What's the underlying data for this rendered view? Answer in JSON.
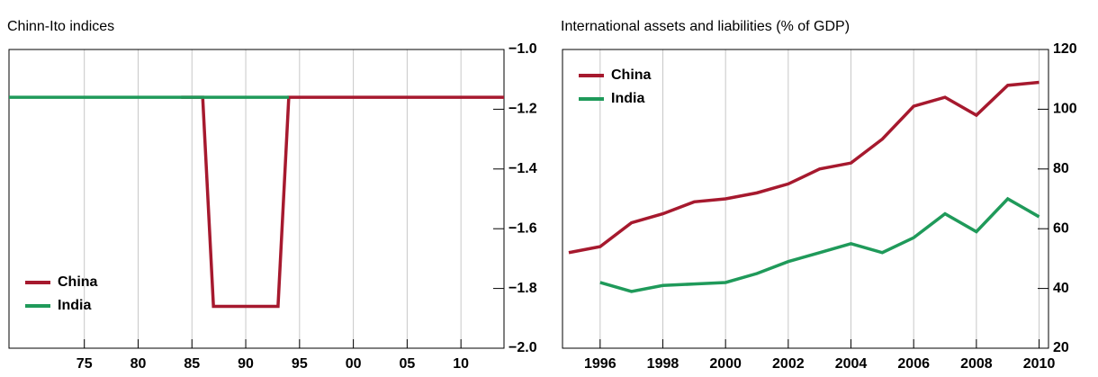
{
  "chart_data": [
    {
      "type": "line",
      "title": "Chinn-Ito indices",
      "xlim": [
        1968,
        2014
      ],
      "xticks": [
        {
          "value": 1975,
          "label": "75"
        },
        {
          "value": 1980,
          "label": "80"
        },
        {
          "value": 1985,
          "label": "85"
        },
        {
          "value": 1990,
          "label": "90"
        },
        {
          "value": 1995,
          "label": "95"
        },
        {
          "value": 2000,
          "label": "00"
        },
        {
          "value": 2005,
          "label": "05"
        },
        {
          "value": 2010,
          "label": "10"
        }
      ],
      "ylim": [
        -2,
        -1
      ],
      "yticks": [
        {
          "value": -1,
          "label": "−1.0"
        },
        {
          "value": -1.2,
          "label": "−1.2"
        },
        {
          "value": -1.4,
          "label": "−1.4"
        },
        {
          "value": -1.6,
          "label": "−1.6"
        },
        {
          "value": -1.8,
          "label": "−1.8"
        },
        {
          "value": -2,
          "label": "−2.0"
        }
      ],
      "grid": true,
      "legend": "lower left",
      "series": [
        {
          "name": "China",
          "color": "#a6192e",
          "x": [
            1984,
            1986,
            1987,
            1993,
            1994,
            2014
          ],
          "values": [
            -1.16,
            -1.16,
            -1.86,
            -1.86,
            -1.16,
            -1.16
          ]
        },
        {
          "name": "India",
          "color": "#1f9a5a",
          "x": [
            1968,
            1994
          ],
          "values": [
            -1.16,
            -1.16
          ]
        }
      ]
    },
    {
      "type": "line",
      "title": "International assets and liabilities (% of GDP)",
      "xlim": [
        1994.8,
        2010.3
      ],
      "xticks": [
        1996,
        1998,
        2000,
        2002,
        2004,
        2006,
        2008,
        2010
      ],
      "ylim": [
        20,
        120
      ],
      "yticks": [
        20,
        40,
        60,
        80,
        100,
        120
      ],
      "grid": true,
      "legend": "upper left",
      "series": [
        {
          "name": "China",
          "color": "#a6192e",
          "x": [
            1995,
            1996,
            1997,
            1998,
            1999,
            2000,
            2001,
            2002,
            2003,
            2004,
            2005,
            2006,
            2007,
            2008,
            2009,
            2010
          ],
          "values": [
            52,
            54,
            62,
            65,
            69,
            70,
            72,
            75,
            80,
            82,
            90,
            101,
            104,
            98,
            108,
            109
          ]
        },
        {
          "name": "India",
          "color": "#1f9a5a",
          "x": [
            1996,
            1997,
            1998,
            1999,
            2000,
            2001,
            2002,
            2003,
            2004,
            2005,
            2006,
            2007,
            2008,
            2009,
            2010
          ],
          "values": [
            42,
            39,
            41,
            41.5,
            42,
            45,
            49,
            52,
            55,
            52,
            57,
            65,
            59,
            70,
            64
          ]
        }
      ]
    }
  ]
}
